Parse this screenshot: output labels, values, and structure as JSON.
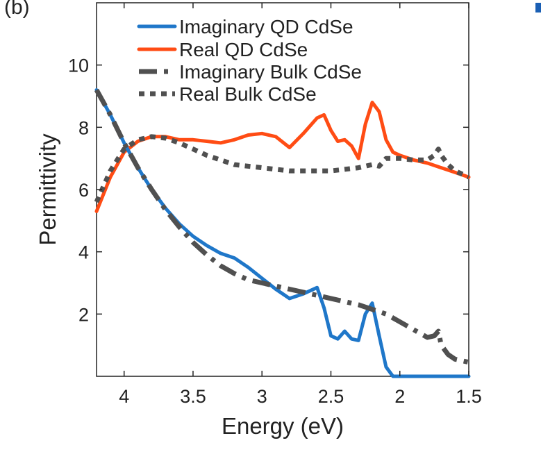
{
  "panel_label": "(b)",
  "colors": {
    "imag_qd": "#1f77c9",
    "real_qd": "#ff4c14",
    "bulk": "#505050",
    "stray_mark": "#1a5fb4"
  },
  "chart_data": {
    "type": "line",
    "title": "",
    "xlabel": "Energy (eV)",
    "ylabel": "Permittivity",
    "xlim": [
      4.2,
      1.5
    ],
    "ylim": [
      0,
      12
    ],
    "x_reversed": true,
    "grid": false,
    "legend_position": "top-center",
    "xticks": [
      4,
      3.5,
      3,
      2.5,
      2,
      1.5
    ],
    "xtick_labels": [
      "4",
      "3.5",
      "3",
      "2.5",
      "2",
      "1.5"
    ],
    "yticks": [
      2,
      4,
      6,
      8,
      10
    ],
    "ytick_labels": [
      "2",
      "4",
      "6",
      "8",
      "10"
    ],
    "series": [
      {
        "name": "Imaginary QD CdSe",
        "style": "solid",
        "color": "#1f77c9",
        "x": [
          4.2,
          4.1,
          4.0,
          3.9,
          3.8,
          3.7,
          3.6,
          3.5,
          3.4,
          3.3,
          3.2,
          3.1,
          3.0,
          2.9,
          2.8,
          2.7,
          2.6,
          2.55,
          2.5,
          2.45,
          2.4,
          2.35,
          2.3,
          2.25,
          2.2,
          2.15,
          2.1,
          2.05,
          2.0,
          1.9,
          1.8,
          1.7,
          1.6,
          1.5
        ],
        "y": [
          9.2,
          8.4,
          7.5,
          6.7,
          6.0,
          5.4,
          4.9,
          4.5,
          4.2,
          3.95,
          3.8,
          3.5,
          3.15,
          2.8,
          2.5,
          2.65,
          2.85,
          2.2,
          1.3,
          1.2,
          1.45,
          1.2,
          1.15,
          2.0,
          2.35,
          1.3,
          0.3,
          0.0,
          0.0,
          0.0,
          0.0,
          0.0,
          0.0,
          0.0
        ]
      },
      {
        "name": "Real QD CdSe",
        "style": "solid",
        "color": "#ff4c14",
        "x": [
          4.2,
          4.1,
          4.0,
          3.9,
          3.8,
          3.7,
          3.6,
          3.5,
          3.4,
          3.3,
          3.2,
          3.1,
          3.0,
          2.9,
          2.8,
          2.7,
          2.6,
          2.55,
          2.5,
          2.45,
          2.4,
          2.35,
          2.3,
          2.25,
          2.2,
          2.15,
          2.1,
          2.05,
          2.0,
          1.9,
          1.8,
          1.7,
          1.6,
          1.5
        ],
        "y": [
          5.3,
          6.4,
          7.2,
          7.55,
          7.7,
          7.7,
          7.6,
          7.6,
          7.55,
          7.5,
          7.6,
          7.75,
          7.8,
          7.7,
          7.35,
          7.8,
          8.3,
          8.4,
          7.9,
          7.55,
          7.6,
          7.4,
          7.0,
          8.1,
          8.8,
          8.5,
          7.6,
          7.2,
          7.1,
          6.95,
          6.85,
          6.7,
          6.55,
          6.4
        ]
      },
      {
        "name": "Imaginary Bulk CdSe",
        "style": "dashdot",
        "color": "#505050",
        "x": [
          4.2,
          4.1,
          4.0,
          3.9,
          3.8,
          3.7,
          3.6,
          3.5,
          3.4,
          3.3,
          3.2,
          3.1,
          3.0,
          2.9,
          2.8,
          2.7,
          2.6,
          2.5,
          2.4,
          2.3,
          2.2,
          2.1,
          2.0,
          1.9,
          1.8,
          1.75,
          1.72,
          1.7,
          1.65,
          1.6,
          1.5
        ],
        "y": [
          9.2,
          8.4,
          7.5,
          6.7,
          6.0,
          5.35,
          4.8,
          4.3,
          3.9,
          3.55,
          3.3,
          3.1,
          3.0,
          2.9,
          2.8,
          2.7,
          2.6,
          2.5,
          2.4,
          2.3,
          2.15,
          2.0,
          1.75,
          1.5,
          1.25,
          1.3,
          1.45,
          1.0,
          0.7,
          0.55,
          0.45
        ]
      },
      {
        "name": "Real Bulk CdSe",
        "style": "dotted",
        "color": "#505050",
        "x": [
          4.2,
          4.1,
          4.0,
          3.9,
          3.8,
          3.7,
          3.6,
          3.5,
          3.4,
          3.3,
          3.2,
          3.1,
          3.0,
          2.9,
          2.8,
          2.7,
          2.6,
          2.5,
          2.4,
          2.3,
          2.2,
          2.15,
          2.1,
          2.0,
          1.9,
          1.8,
          1.75,
          1.72,
          1.7,
          1.65,
          1.6,
          1.5
        ],
        "y": [
          5.6,
          6.6,
          7.3,
          7.6,
          7.7,
          7.65,
          7.5,
          7.3,
          7.1,
          6.95,
          6.8,
          6.75,
          6.7,
          6.65,
          6.6,
          6.6,
          6.6,
          6.6,
          6.65,
          6.7,
          6.8,
          6.75,
          7.0,
          7.0,
          6.95,
          6.95,
          7.1,
          7.3,
          7.1,
          6.8,
          6.6,
          6.4
        ]
      }
    ]
  }
}
